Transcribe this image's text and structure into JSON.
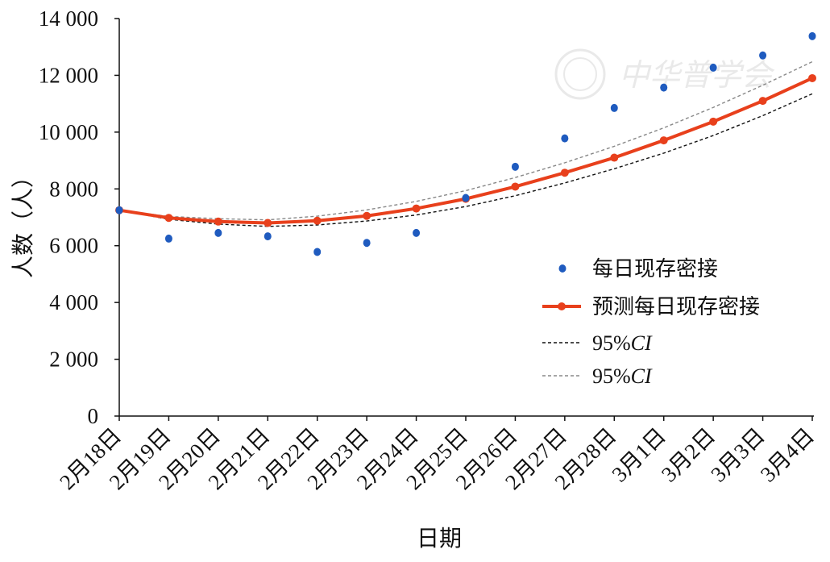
{
  "chart_data": {
    "type": "line",
    "title": "",
    "xlabel": "日期",
    "ylabel": "人数（人）",
    "ylim": [
      0,
      14000
    ],
    "yticks": [
      0,
      2000,
      4000,
      6000,
      8000,
      10000,
      12000,
      14000
    ],
    "ytick_labels": [
      "0",
      "2 000",
      "4 000",
      "6 000",
      "8 000",
      "10 000",
      "12 000",
      "14 000"
    ],
    "categories": [
      "2月18日",
      "2月19日",
      "2月20日",
      "2月21日",
      "2月22日",
      "2月23日",
      "2月24日",
      "2月25日",
      "2月26日",
      "2月27日",
      "2月28日",
      "3月1日",
      "3月2日",
      "3月3日",
      "3月4日"
    ],
    "grid": false,
    "legend_position": "right",
    "series": [
      {
        "name": "每日现存密接",
        "style": "scatter",
        "color": "#1f5bbf",
        "values": [
          7250,
          6250,
          6450,
          6330,
          5780,
          6100,
          6450,
          7680,
          8780,
          9780,
          10850,
          11570,
          12270,
          12700,
          13380
        ]
      },
      {
        "name": "预测每日现存密接",
        "style": "line-markers",
        "color": "#e8401c",
        "values": [
          7250,
          6980,
          6850,
          6800,
          6880,
          7050,
          7310,
          7650,
          8080,
          8570,
          9100,
          9710,
          10370,
          11100,
          11900
        ]
      },
      {
        "name": "95%CI",
        "style": "dashed",
        "color": "#111111",
        "values": [
          7250,
          6930,
          6760,
          6680,
          6730,
          6870,
          7080,
          7380,
          7760,
          8210,
          8710,
          9260,
          9880,
          10580,
          11350
        ]
      },
      {
        "name": "95%CI",
        "style": "dashed",
        "color": "#888888",
        "values": [
          7250,
          7030,
          6950,
          6910,
          7040,
          7260,
          7560,
          7940,
          8400,
          8920,
          9500,
          10150,
          10870,
          11650,
          12480
        ]
      }
    ]
  },
  "watermark": {
    "text": "中华普学会"
  }
}
